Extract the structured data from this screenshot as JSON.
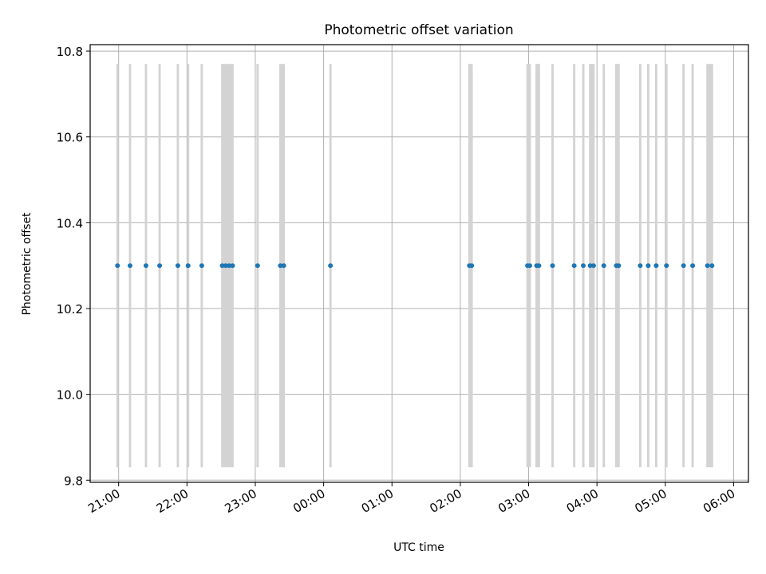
{
  "chart_data": {
    "type": "scatter",
    "title": "Photometric offset variation",
    "xlabel": "UTC time",
    "ylabel": "Photometric offset",
    "ylim": [
      9.795,
      10.815
    ],
    "xlim": [
      "20:35",
      "06:13"
    ],
    "y_ticks": [
      9.8,
      10.0,
      10.2,
      10.4,
      10.6,
      10.8
    ],
    "y_tick_labels": [
      "9.8",
      "10.0",
      "10.2",
      "10.4",
      "10.6",
      "10.8"
    ],
    "x_ticks": [
      "21:00",
      "22:00",
      "23:00",
      "00:00",
      "01:00",
      "02:00",
      "03:00",
      "04:00",
      "05:00",
      "06:00"
    ],
    "x_tick_labels": [
      "21:00",
      "22:00",
      "23:00",
      "00:00",
      "01:00",
      "02:00",
      "03:00",
      "04:00",
      "05:00",
      "06:00"
    ],
    "grid": true,
    "point_color": "#1f77b4",
    "bar_color": "#d3d3d3",
    "bar_range": [
      9.83,
      10.77
    ],
    "points": {
      "x": [
        "20:59",
        "21:10",
        "21:24",
        "21:36",
        "21:52",
        "22:01",
        "22:13",
        "22:31",
        "22:34",
        "22:37",
        "22:40",
        "23:02",
        "23:22",
        "23:25",
        "24:06",
        "26:08",
        "26:10",
        "26:59",
        "27:01",
        "27:07",
        "27:09",
        "27:21",
        "27:40",
        "27:48",
        "27:54",
        "27:57",
        "28:06",
        "28:17",
        "28:19",
        "28:38",
        "28:45",
        "28:52",
        "29:01",
        "29:16",
        "29:24",
        "29:37",
        "29:41"
      ],
      "y": [
        10.3,
        10.3,
        10.3,
        10.3,
        10.3,
        10.3,
        10.3,
        10.3,
        10.3,
        10.3,
        10.3,
        10.3,
        10.3,
        10.3,
        10.3,
        10.3,
        10.3,
        10.3,
        10.3,
        10.3,
        10.3,
        10.3,
        10.3,
        10.3,
        10.3,
        10.3,
        10.3,
        10.3,
        10.3,
        10.3,
        10.3,
        10.3,
        10.3,
        10.3,
        10.3,
        10.3,
        10.3
      ]
    },
    "bars": [
      {
        "start": "20:58",
        "end": "21:00"
      },
      {
        "start": "21:09",
        "end": "21:11"
      },
      {
        "start": "21:23",
        "end": "21:25"
      },
      {
        "start": "21:35",
        "end": "21:37"
      },
      {
        "start": "21:51",
        "end": "21:53"
      },
      {
        "start": "22:00",
        "end": "22:02"
      },
      {
        "start": "22:12",
        "end": "22:14"
      },
      {
        "start": "22:30",
        "end": "22:41"
      },
      {
        "start": "23:01",
        "end": "23:03"
      },
      {
        "start": "23:21",
        "end": "23:26"
      },
      {
        "start": "24:05",
        "end": "24:07"
      },
      {
        "start": "26:07",
        "end": "26:11"
      },
      {
        "start": "26:58",
        "end": "27:02"
      },
      {
        "start": "27:06",
        "end": "27:10"
      },
      {
        "start": "27:20",
        "end": "27:22"
      },
      {
        "start": "27:39",
        "end": "27:41"
      },
      {
        "start": "27:47",
        "end": "27:49"
      },
      {
        "start": "27:53",
        "end": "27:58"
      },
      {
        "start": "28:05",
        "end": "28:07"
      },
      {
        "start": "28:16",
        "end": "28:20"
      },
      {
        "start": "28:37",
        "end": "28:39"
      },
      {
        "start": "28:44",
        "end": "28:46"
      },
      {
        "start": "28:51",
        "end": "28:53"
      },
      {
        "start": "29:00",
        "end": "29:02"
      },
      {
        "start": "29:15",
        "end": "29:17"
      },
      {
        "start": "29:23",
        "end": "29:25"
      },
      {
        "start": "29:36",
        "end": "29:42"
      }
    ]
  }
}
